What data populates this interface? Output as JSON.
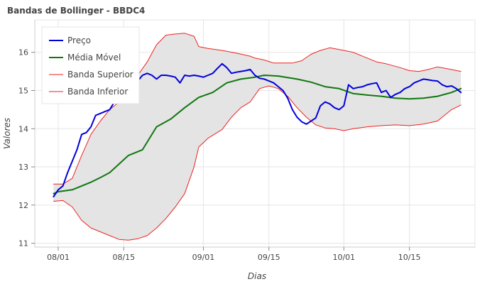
{
  "chart_data": {
    "type": "line",
    "title": "Bandas de Bollinger - BBDC4",
    "xlabel": "Dias",
    "ylabel": "Valores",
    "xlim": [
      "2023-07-27",
      "2023-10-29"
    ],
    "ylim": [
      10.9,
      16.85
    ],
    "x_ticks": [
      {
        "date": "2023-08-01",
        "label": "08/01"
      },
      {
        "date": "2023-08-15",
        "label": "08/15"
      },
      {
        "date": "2023-09-01",
        "label": "09/01"
      },
      {
        "date": "2023-09-15",
        "label": "09/15"
      },
      {
        "date": "2023-10-01",
        "label": "10/01"
      },
      {
        "date": "2023-10-15",
        "label": "10/15"
      }
    ],
    "y_ticks": [
      11,
      12,
      13,
      14,
      15,
      16
    ],
    "grid": true,
    "legend_position": "top-left",
    "band_fill_color": "#e4e4e4",
    "series": [
      {
        "name": "Preço",
        "color": "#0000dd",
        "line_width": 2,
        "x": [
          "2023-07-31",
          "2023-08-01",
          "2023-08-02",
          "2023-08-03",
          "2023-08-04",
          "2023-08-05",
          "2023-08-06",
          "2023-08-07",
          "2023-08-08",
          "2023-08-09",
          "2023-08-10",
          "2023-08-11",
          "2023-08-12",
          "2023-08-13",
          "2023-08-14",
          "2023-08-15",
          "2023-08-16",
          "2023-08-17",
          "2023-08-18",
          "2023-08-19",
          "2023-08-20",
          "2023-08-21",
          "2023-08-22",
          "2023-08-23",
          "2023-08-24",
          "2023-08-25",
          "2023-08-26",
          "2023-08-27",
          "2023-08-28",
          "2023-08-29",
          "2023-08-30",
          "2023-08-31",
          "2023-09-01",
          "2023-09-02",
          "2023-09-03",
          "2023-09-04",
          "2023-09-05",
          "2023-09-06",
          "2023-09-07",
          "2023-09-08",
          "2023-09-09",
          "2023-09-10",
          "2023-09-11",
          "2023-09-12",
          "2023-09-13",
          "2023-09-14",
          "2023-09-15",
          "2023-09-16",
          "2023-09-17",
          "2023-09-18",
          "2023-09-19",
          "2023-09-20",
          "2023-09-21",
          "2023-09-22",
          "2023-09-23",
          "2023-09-24",
          "2023-09-25",
          "2023-09-26",
          "2023-09-27",
          "2023-09-28",
          "2023-09-29",
          "2023-09-30",
          "2023-10-01",
          "2023-10-02",
          "2023-10-03",
          "2023-10-04",
          "2023-10-05",
          "2023-10-06",
          "2023-10-07",
          "2023-10-08",
          "2023-10-09",
          "2023-10-10",
          "2023-10-11",
          "2023-10-12",
          "2023-10-13",
          "2023-10-14",
          "2023-10-15",
          "2023-10-16",
          "2023-10-17",
          "2023-10-18",
          "2023-10-19",
          "2023-10-20",
          "2023-10-21",
          "2023-10-22",
          "2023-10-23",
          "2023-10-24",
          "2023-10-25",
          "2023-10-26"
        ],
        "y": [
          12.22,
          12.4,
          12.5,
          12.85,
          13.15,
          13.45,
          13.85,
          13.9,
          14.05,
          14.35,
          14.4,
          14.45,
          14.5,
          14.7,
          14.8,
          14.85,
          15.0,
          15.1,
          15.25,
          15.4,
          15.45,
          15.4,
          15.3,
          15.4,
          15.4,
          15.38,
          15.35,
          15.2,
          15.4,
          15.38,
          15.4,
          15.38,
          15.35,
          15.4,
          15.45,
          15.58,
          15.7,
          15.6,
          15.45,
          15.48,
          15.5,
          15.52,
          15.55,
          15.4,
          15.32,
          15.3,
          15.25,
          15.2,
          15.1,
          15.0,
          14.8,
          14.5,
          14.3,
          14.18,
          14.12,
          14.2,
          14.28,
          14.6,
          14.7,
          14.65,
          14.55,
          14.5,
          14.6,
          15.15,
          15.05,
          15.08,
          15.1,
          15.15,
          15.18,
          15.2,
          14.95,
          15.0,
          14.82,
          14.9,
          14.95,
          15.05,
          15.1,
          15.2,
          15.25,
          15.3,
          15.28,
          15.26,
          15.25,
          15.15,
          15.1,
          15.12,
          15.05,
          14.95
        ]
      },
      {
        "name": "Média Móvel",
        "color": "#117711",
        "line_width": 2,
        "x": [
          "2023-07-31",
          "2023-08-01",
          "2023-08-04",
          "2023-08-08",
          "2023-08-10",
          "2023-08-12",
          "2023-08-16",
          "2023-08-19",
          "2023-08-22",
          "2023-08-25",
          "2023-08-28",
          "2023-08-31",
          "2023-09-03",
          "2023-09-06",
          "2023-09-09",
          "2023-09-12",
          "2023-09-14",
          "2023-09-17",
          "2023-09-21",
          "2023-09-24",
          "2023-09-27",
          "2023-09-30",
          "2023-10-03",
          "2023-10-06",
          "2023-10-09",
          "2023-10-12",
          "2023-10-15",
          "2023-10-18",
          "2023-10-21",
          "2023-10-24",
          "2023-10-26"
        ],
        "y": [
          12.3,
          12.35,
          12.4,
          12.6,
          12.72,
          12.85,
          13.3,
          13.45,
          14.05,
          14.25,
          14.55,
          14.82,
          14.95,
          15.2,
          15.3,
          15.35,
          15.4,
          15.38,
          15.3,
          15.22,
          15.1,
          15.05,
          14.92,
          14.88,
          14.85,
          14.8,
          14.78,
          14.8,
          14.85,
          14.95,
          15.05
        ]
      },
      {
        "name": "Banda Superior",
        "color": "#ee2222",
        "line_width": 1,
        "x": [
          "2023-07-31",
          "2023-08-02",
          "2023-08-04",
          "2023-08-06",
          "2023-08-08",
          "2023-08-10",
          "2023-08-12",
          "2023-08-14",
          "2023-08-16",
          "2023-08-18",
          "2023-08-20",
          "2023-08-22",
          "2023-08-24",
          "2023-08-26",
          "2023-08-28",
          "2023-08-30",
          "2023-08-31",
          "2023-09-02",
          "2023-09-05",
          "2023-09-08",
          "2023-09-11",
          "2023-09-12",
          "2023-09-14",
          "2023-09-16",
          "2023-09-18",
          "2023-09-20",
          "2023-09-22",
          "2023-09-24",
          "2023-09-26",
          "2023-09-28",
          "2023-10-01",
          "2023-10-03",
          "2023-10-06",
          "2023-10-08",
          "2023-10-10",
          "2023-10-13",
          "2023-10-15",
          "2023-10-17",
          "2023-10-19",
          "2023-10-21",
          "2023-10-24",
          "2023-10-26"
        ],
        "y": [
          12.55,
          12.55,
          12.7,
          13.3,
          13.85,
          14.2,
          14.5,
          14.7,
          15.05,
          15.4,
          15.75,
          16.2,
          16.45,
          16.48,
          16.5,
          16.42,
          16.15,
          16.1,
          16.05,
          15.98,
          15.9,
          15.85,
          15.8,
          15.72,
          15.72,
          15.72,
          15.78,
          15.95,
          16.05,
          16.12,
          16.05,
          16.0,
          15.85,
          15.75,
          15.7,
          15.6,
          15.52,
          15.5,
          15.55,
          15.62,
          15.55,
          15.5
        ]
      },
      {
        "name": "Banda Inferior",
        "color": "#ee2222",
        "line_width": 1,
        "x": [
          "2023-07-31",
          "2023-08-02",
          "2023-08-04",
          "2023-08-06",
          "2023-08-08",
          "2023-08-10",
          "2023-08-12",
          "2023-08-14",
          "2023-08-16",
          "2023-08-18",
          "2023-08-20",
          "2023-08-22",
          "2023-08-24",
          "2023-08-26",
          "2023-08-28",
          "2023-08-30",
          "2023-08-31",
          "2023-09-02",
          "2023-09-05",
          "2023-09-07",
          "2023-09-09",
          "2023-09-11",
          "2023-09-13",
          "2023-09-15",
          "2023-09-17",
          "2023-09-19",
          "2023-09-21",
          "2023-09-23",
          "2023-09-25",
          "2023-09-27",
          "2023-09-29",
          "2023-10-01",
          "2023-10-03",
          "2023-10-06",
          "2023-10-09",
          "2023-10-12",
          "2023-10-15",
          "2023-10-18",
          "2023-10-21",
          "2023-10-24",
          "2023-10-26"
        ],
        "y": [
          12.1,
          12.12,
          11.95,
          11.6,
          11.4,
          11.3,
          11.2,
          11.1,
          11.08,
          11.12,
          11.2,
          11.4,
          11.65,
          11.95,
          12.3,
          13.0,
          13.52,
          13.75,
          13.98,
          14.3,
          14.55,
          14.7,
          15.05,
          15.12,
          15.05,
          14.85,
          14.55,
          14.3,
          14.1,
          14.02,
          14.0,
          13.95,
          14.0,
          14.05,
          14.08,
          14.1,
          14.08,
          14.12,
          14.2,
          14.5,
          14.62
        ]
      }
    ]
  }
}
